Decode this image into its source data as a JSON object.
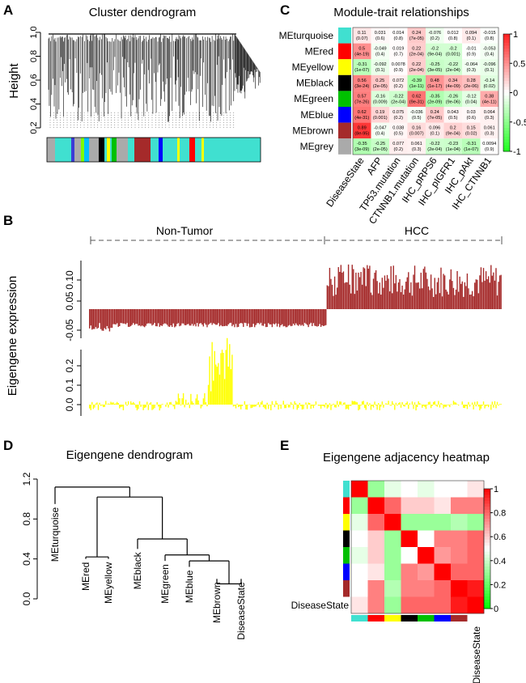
{
  "panels": {
    "A": {
      "letter": "A",
      "title": "Cluster dendrogram",
      "ylabel": "Height",
      "yticks": [
        "1.0",
        "0.8",
        "0.6",
        "0.4",
        "0.2"
      ],
      "color_bar": [
        "#aaaaaa",
        "#40e0d0",
        "#40e0d0",
        "#3b3bd6",
        "#aaaaaa",
        "#7cfc00",
        "#00bfff",
        "#aaaaaa",
        "#000000",
        "#40e0d0",
        "#ffff00",
        "#40e0d0",
        "#00c000",
        "#aaaaaa",
        "#40e0d0",
        "#a52a2a",
        "#40e0d0",
        "#0000ff",
        "#40e0d0",
        "#ffff00",
        "#40e0d0",
        "#ff0000",
        "#40e0d0",
        "#ffff00",
        "#40e0d0",
        "#40e0d0"
      ]
    },
    "B": {
      "letter": "B",
      "ylabel": "Eigengene expression",
      "group_labels": [
        "Non-Tumor",
        "HCC"
      ],
      "top_yticks": [
        "0.10",
        "0.05",
        "-0.05"
      ],
      "bottom_yticks": [
        "0.2",
        "0.1",
        "0.0"
      ],
      "colors": {
        "top": "#a52a2a",
        "bottom": "#ffff00"
      }
    },
    "C": {
      "letter": "C",
      "title": "Module-trait relationships",
      "modules": [
        "MEturquoise",
        "MEred",
        "MEyellow",
        "MEblack",
        "MEgreen",
        "MEblue",
        "MEbrown",
        "MEgrey"
      ],
      "module_colors": [
        "#40e0d0",
        "#ff0000",
        "#ffff00",
        "#000000",
        "#00c000",
        "#0000ff",
        "#a52a2a",
        "#aaaaaa"
      ],
      "traits": [
        "DiseaseState",
        "AFP",
        "TP53.mutation",
        "CTNNB1.mutation",
        "IHC_pRPS6",
        "IHC_pIGFR1",
        "IHC_pAkt",
        "IHC_CTNNB1"
      ],
      "values": [
        [
          "0.11",
          "0.031",
          "0.014",
          "0.24",
          "-0.076",
          "0.012",
          "0.094",
          "-0.015"
        ],
        [
          "0.5",
          "-0.049",
          "0.019",
          "0.22",
          "-0.2",
          "-0.2",
          "-0.01",
          "-0.053"
        ],
        [
          "-0.31",
          "-0.092",
          "0.0078",
          "0.22",
          "-0.25",
          "-0.22",
          "-0.064",
          "-0.096"
        ],
        [
          "0.56",
          "0.25",
          "0.072",
          "-0.39",
          "0.48",
          "0.34",
          "0.28",
          "-0.14"
        ],
        [
          "0.57",
          "-0.16",
          "-0.22",
          "0.62",
          "-0.35",
          "-0.26",
          "-0.12",
          "0.38"
        ],
        [
          "0.62",
          "0.19",
          "0.075",
          "-0.036",
          "0.24",
          "0.043",
          "0.03",
          "0.064"
        ],
        [
          "0.89",
          "-0.047",
          "0.038",
          "0.16",
          "0.096",
          "0.2",
          "0.15",
          "0.061"
        ],
        [
          "-0.35",
          "-0.25",
          "0.077",
          "0.061",
          "-0.22",
          "-0.23",
          "-0.31",
          "0.0094"
        ]
      ],
      "pvalues": [
        [
          "(0.07)",
          "(0.6)",
          "(0.8)",
          "(7e-05)",
          "(0.2)",
          "(0.8)",
          "(0.1)",
          "(0.8)"
        ],
        [
          "(4e-19)",
          "(0.4)",
          "(0.7)",
          "(2e-04)",
          "(9e-04)",
          "(0.001)",
          "(0.9)",
          "(0.4)"
        ],
        [
          "(1e-07)",
          "(0.1)",
          "(0.9)",
          "(2e-04)",
          "(3e-05)",
          "(2e-04)",
          "(0.3)",
          "(0.1)"
        ],
        [
          "(3e-24)",
          "(2e-05)",
          "(0.2)",
          "(1e-11)",
          "(1e-17)",
          "(4e-09)",
          "(2e-06)",
          "(0.02)"
        ],
        [
          "(7e-26)",
          "(0.009)",
          "(2e-04)",
          "(9e-31)",
          "(2e-09)",
          "(9e-06)",
          "(0.04)",
          "(4e-11)"
        ],
        [
          "(4e-31)",
          "(0.001)",
          "(0.2)",
          "(0.5)",
          "(7e-05)",
          "(0.5)",
          "(0.6)",
          "(0.3)"
        ],
        [
          "(8e-95)",
          "(0.4)",
          "(0.5)",
          "(0.007)",
          "(0.1)",
          "(9e-04)",
          "(0.02)",
          "(0.3)"
        ],
        [
          "(3e-09)",
          "(2e-05)",
          "(0.2)",
          "(0.3)",
          "(2e-04)",
          "(1e-04)",
          "(1e-07)",
          "(0.9)"
        ]
      ],
      "legend_ticks": [
        "1",
        "0.5",
        "0",
        "-0.5",
        "-1"
      ]
    },
    "D": {
      "letter": "D",
      "title": "Eigengene dendrogram",
      "yticks": [
        "1.2",
        "0.8",
        "0.4",
        "0.0"
      ],
      "leaves": [
        "MEturquoise",
        "MEred",
        "MEyellow",
        "MEblack",
        "MEgreen",
        "MEblue",
        "MEbrown",
        "DiseaseState"
      ]
    },
    "E": {
      "letter": "E",
      "title": "Eigengene adjacency heatmap",
      "row_label": "DiseaseState",
      "col_label": "DiseaseState",
      "legend_ticks": [
        "1",
        "0.8",
        "0.6",
        "0.4",
        "0.2",
        "0"
      ],
      "side_colors": [
        "#40e0d0",
        "#ff0000",
        "#ffff00",
        "#000000",
        "#00c000",
        "#0000ff",
        "#a52a2a"
      ]
    }
  },
  "chart_data": [
    {
      "type": "heatmap",
      "title": "Module-trait relationships",
      "rows": [
        "MEturquoise",
        "MEred",
        "MEyellow",
        "MEblack",
        "MEgreen",
        "MEblue",
        "MEbrown",
        "MEgrey"
      ],
      "columns": [
        "DiseaseState",
        "AFP",
        "TP53.mutation",
        "CTNNB1.mutation",
        "IHC_pRPS6",
        "IHC_pIGFR1",
        "IHC_pAkt",
        "IHC_CTNNB1"
      ],
      "values": [
        [
          0.11,
          0.031,
          0.014,
          0.24,
          -0.076,
          0.012,
          0.094,
          -0.015
        ],
        [
          0.5,
          -0.049,
          0.019,
          0.22,
          -0.2,
          -0.2,
          -0.01,
          -0.053
        ],
        [
          -0.31,
          -0.092,
          0.0078,
          0.22,
          -0.25,
          -0.22,
          -0.064,
          -0.096
        ],
        [
          0.56,
          0.25,
          0.072,
          -0.39,
          0.48,
          0.34,
          0.28,
          -0.14
        ],
        [
          0.57,
          -0.16,
          -0.22,
          0.62,
          -0.35,
          -0.26,
          -0.12,
          0.38
        ],
        [
          0.62,
          0.19,
          0.075,
          -0.036,
          0.24,
          0.043,
          0.03,
          0.064
        ],
        [
          0.89,
          -0.047,
          0.038,
          0.16,
          0.096,
          0.2,
          0.15,
          0.061
        ],
        [
          -0.35,
          -0.25,
          0.077,
          0.061,
          -0.22,
          -0.23,
          -0.31,
          0.0094
        ]
      ],
      "range": [
        -1,
        1
      ]
    },
    {
      "type": "heatmap",
      "title": "Eigengene adjacency heatmap",
      "rows": [
        "MEturquoise",
        "MEred",
        "MEyellow",
        "MEblack",
        "MEgreen",
        "MEblue",
        "MEbrown",
        "DiseaseState"
      ],
      "columns": [
        "MEturquoise",
        "MEred",
        "MEyellow",
        "MEblack",
        "MEgreen",
        "MEblue",
        "MEbrown",
        "DiseaseState"
      ],
      "values": [
        [
          1.0,
          0.3,
          0.45,
          0.5,
          0.45,
          0.5,
          0.5,
          0.55
        ],
        [
          0.3,
          1.0,
          0.8,
          0.6,
          0.6,
          0.55,
          0.75,
          0.75
        ],
        [
          0.45,
          0.8,
          1.0,
          0.3,
          0.3,
          0.3,
          0.35,
          0.3
        ],
        [
          0.5,
          0.6,
          0.3,
          1.0,
          0.5,
          0.75,
          0.75,
          0.8
        ],
        [
          0.45,
          0.6,
          0.3,
          0.5,
          1.0,
          0.7,
          0.75,
          0.8
        ],
        [
          0.5,
          0.55,
          0.3,
          0.75,
          0.7,
          1.0,
          0.8,
          0.8
        ],
        [
          0.5,
          0.75,
          0.35,
          0.75,
          0.75,
          0.8,
          1.0,
          0.95
        ],
        [
          0.55,
          0.75,
          0.3,
          0.8,
          0.8,
          0.8,
          0.95,
          1.0
        ]
      ],
      "range": [
        0,
        1
      ]
    },
    {
      "type": "dendrogram",
      "title": "Eigengene dendrogram",
      "leaves": [
        "MEturquoise",
        "MEred",
        "MEyellow",
        "MEblack",
        "MEgreen",
        "MEblue",
        "MEbrown",
        "DiseaseState"
      ],
      "merges": [
        {
          "a": "MEbrown",
          "b": "DiseaseState",
          "height": 0.1
        },
        {
          "a": "MEblue",
          "b": "MEbrown+DiseaseState",
          "height": 0.38
        },
        {
          "a": "MEred",
          "b": "MEyellow",
          "height": 0.42
        },
        {
          "a": "MEgreen",
          "b": "MEblue+MEbrown+DiseaseState",
          "height": 0.44
        },
        {
          "a": "MEblack",
          "b": "MEgreen+MEblue+MEbrown+DiseaseState",
          "height": 0.6
        },
        {
          "a": "MEred+MEyellow",
          "b": "MEblack+MEgreen+MEblue+MEbrown+DiseaseState",
          "height": 1.02
        },
        {
          "a": "MEturquoise",
          "b": "rest",
          "height": 1.12
        }
      ],
      "ylim": [
        0,
        1.2
      ]
    },
    {
      "type": "bar",
      "series": [
        {
          "name": "MEbrown",
          "groups": {
            "Non-Tumor": {
              "approx_range": [
                -0.06,
                -0.035
              ]
            },
            "HCC": {
              "approx_range": [
                0.03,
                0.12
              ]
            }
          }
        },
        {
          "name": "MEyellow",
          "groups": {
            "Non-Tumor": {
              "approx_range": [
                -0.03,
                0.38
              ]
            },
            "HCC": {
              "approx_range": [
                -0.03,
                0.03
              ]
            }
          }
        }
      ]
    }
  ]
}
